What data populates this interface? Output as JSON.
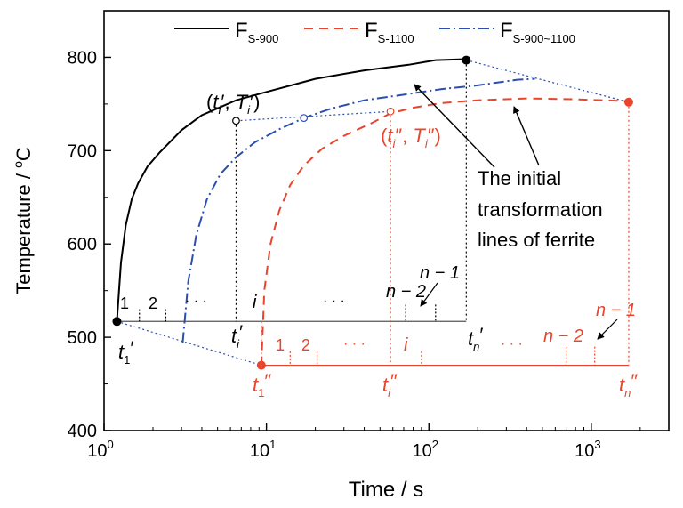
{
  "chart_data": {
    "type": "line",
    "xlabel": "Time / s",
    "ylabel_main": "Temperature / ",
    "ylabel_deg": "o",
    "ylabel_unit": "C",
    "x_scale": "log",
    "xlim": [
      1,
      3000
    ],
    "ylim": [
      400,
      850
    ],
    "x_ticks": [
      {
        "value": 1,
        "base": "10",
        "exp": "0"
      },
      {
        "value": 10,
        "base": "10",
        "exp": "1"
      },
      {
        "value": 100,
        "base": "10",
        "exp": "2"
      },
      {
        "value": 1000,
        "base": "10",
        "exp": "3"
      }
    ],
    "y_ticks": [
      {
        "value": 400,
        "label": "400"
      },
      {
        "value": 500,
        "label": "500"
      },
      {
        "value": 600,
        "label": "600"
      },
      {
        "value": 700,
        "label": "700"
      },
      {
        "value": 800,
        "label": "800"
      }
    ],
    "grid": false,
    "legend_position": "top",
    "legend": [
      {
        "main": "F",
        "sub": "S-900",
        "color": "#000000",
        "dash": "solid"
      },
      {
        "main": "F",
        "sub": "S-1100",
        "color": "#e8452c",
        "dash": "dashed"
      },
      {
        "main": "F",
        "sub": "S-900~1100",
        "color": "#2b4fb0",
        "dash": "dashdot"
      }
    ],
    "series": [
      {
        "color": "#000000",
        "dash": "solid",
        "points": [
          [
            1.2,
            518
          ],
          [
            1.27,
            580
          ],
          [
            1.36,
            620
          ],
          [
            1.48,
            648
          ],
          [
            1.62,
            665
          ],
          [
            1.85,
            683
          ],
          [
            2.2,
            698
          ],
          [
            3,
            722
          ],
          [
            4,
            738
          ],
          [
            6.5,
            754
          ],
          [
            10,
            763
          ],
          [
            20,
            777
          ],
          [
            40,
            786
          ],
          [
            75,
            792
          ],
          [
            110,
            797
          ],
          [
            170,
            798
          ]
        ]
      },
      {
        "color": "#e8452c",
        "dash": "dashed",
        "points": [
          [
            9.3,
            470
          ],
          [
            9.7,
            550
          ],
          [
            10.6,
            600
          ],
          [
            12,
            636
          ],
          [
            14,
            663
          ],
          [
            17,
            684
          ],
          [
            22,
            702
          ],
          [
            30,
            716
          ],
          [
            45,
            730
          ],
          [
            58,
            740
          ],
          [
            80,
            746
          ],
          [
            120,
            751
          ],
          [
            200,
            754
          ],
          [
            400,
            756
          ],
          [
            800,
            755
          ],
          [
            1700,
            753
          ]
        ]
      },
      {
        "color": "#2b4fb0",
        "dash": "dashdot",
        "points": [
          [
            3.05,
            494
          ],
          [
            3.3,
            560
          ],
          [
            3.7,
            610
          ],
          [
            4.3,
            648
          ],
          [
            5.2,
            675
          ],
          [
            6.5,
            693
          ],
          [
            8.5,
            709
          ],
          [
            12,
            723
          ],
          [
            17,
            735
          ],
          [
            25,
            745
          ],
          [
            40,
            754
          ],
          [
            70,
            760
          ],
          [
            120,
            766
          ],
          [
            200,
            770
          ],
          [
            350,
            776
          ],
          [
            450,
            777
          ]
        ]
      }
    ],
    "filled_points": [
      {
        "x": 1.2,
        "y": 517,
        "color": "#000000"
      },
      {
        "x": 170,
        "y": 797,
        "color": "#000000"
      },
      {
        "x": 9.3,
        "y": 470,
        "color": "#e8452c"
      },
      {
        "x": 1700,
        "y": 752,
        "color": "#e8452c"
      }
    ],
    "open_points": [
      {
        "x": 6.5,
        "y": 732,
        "color": "#000000"
      },
      {
        "x": 17,
        "y": 735,
        "color": "#2b4fb0"
      },
      {
        "x": 58,
        "y": 742,
        "color": "#e8452c"
      }
    ],
    "annotations": [
      {
        "text": "The initial",
        "x": 230,
        "y": 686
      },
      {
        "text": "transformation",
        "x": 230,
        "y": 659
      },
      {
        "text": "lines of ferrite",
        "x": 230,
        "y": 633
      }
    ],
    "point_labels": {
      "black_ti_T": "(t′, T′)",
      "red_ti_T": "(t″, T″)",
      "t1_prime": "t′",
      "ti_prime": "t′",
      "tn_prime": "t′",
      "t1_dprime": "t″",
      "ti_dprime": "t″",
      "tn_dprime": "t″"
    },
    "index_labels": {
      "one": "1",
      "two": "2",
      "dots": "· · ·",
      "i": "i",
      "n_minus_2": "n − 2",
      "n_minus_1": "n − 1"
    }
  }
}
